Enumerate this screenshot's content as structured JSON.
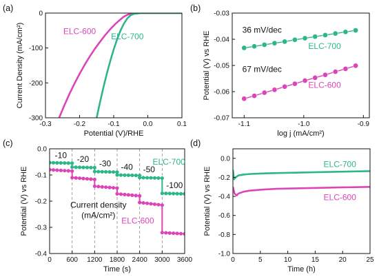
{
  "colors": {
    "elc600": "#dd44b8",
    "elc700": "#2db58c",
    "axis": "#111111",
    "guide": "#888888"
  },
  "chart_data": [
    {
      "id": "a",
      "panel_label": "(a)",
      "type": "line",
      "xlabel": "Potential (V)/RHE",
      "ylabel": "Current Density (mA/cm²)",
      "xlim": [
        -0.3,
        0.1
      ],
      "ylim": [
        -300,
        0
      ],
      "xticks": [
        -0.3,
        -0.2,
        -0.1,
        0.0,
        0.1
      ],
      "xtick_labels": [
        "-0.3",
        "-0.2",
        "-0.1",
        "0.0",
        "0.1"
      ],
      "yticks": [
        -300,
        -200,
        -100,
        0
      ],
      "ytick_labels": [
        "-300",
        "-200",
        "-100",
        "0"
      ],
      "series": [
        {
          "name": "ELC-600",
          "color": "#dd44b8",
          "x": [
            -0.26,
            -0.245,
            -0.23,
            -0.215,
            -0.2,
            -0.185,
            -0.17,
            -0.155,
            -0.14,
            -0.125,
            -0.11,
            -0.095,
            -0.08,
            -0.07,
            -0.06,
            -0.05,
            -0.04,
            -0.03,
            0.0,
            0.1
          ],
          "y": [
            -300,
            -265,
            -232,
            -202,
            -174,
            -148,
            -124,
            -102,
            -82,
            -63,
            -46,
            -31,
            -18,
            -10,
            -5,
            -2,
            -1,
            0,
            0,
            0
          ]
        },
        {
          "name": "ELC-700",
          "color": "#2db58c",
          "x": [
            -0.15,
            -0.14,
            -0.13,
            -0.12,
            -0.11,
            -0.1,
            -0.09,
            -0.08,
            -0.07,
            -0.06,
            -0.05,
            -0.04,
            -0.03,
            -0.02,
            0.0,
            0.1
          ],
          "y": [
            -300,
            -255,
            -212,
            -173,
            -137,
            -104,
            -75,
            -50,
            -30,
            -15,
            -6,
            -2,
            -1,
            0,
            0,
            0
          ]
        }
      ],
      "labels": [
        {
          "text": "ELC-600",
          "series": 0,
          "x": -0.2,
          "y": -60
        },
        {
          "text": "ELC-700",
          "series": 1,
          "x": -0.06,
          "y": -75
        }
      ]
    },
    {
      "id": "b",
      "panel_label": "(b)",
      "type": "scatter",
      "xlabel": "log j (mA/cm²)",
      "ylabel": "Potential (V) vs RHE",
      "xlim": [
        -1.12,
        -0.89
      ],
      "ylim": [
        -0.07,
        -0.03
      ],
      "xticks": [
        -1.1,
        -1.0,
        -0.9
      ],
      "xtick_labels": [
        "-1.1",
        "-1.0",
        "-0.9"
      ],
      "yticks": [
        -0.07,
        -0.06,
        -0.05,
        -0.04,
        -0.03
      ],
      "ytick_labels": [
        "-0.07",
        "-0.06",
        "-0.05",
        "-0.04",
        "-0.03"
      ],
      "series": [
        {
          "name": "ELC-700",
          "color": "#2db58c",
          "x": [
            -1.1,
            -1.083,
            -1.066,
            -1.049,
            -1.032,
            -1.015,
            -0.998,
            -0.981,
            -0.964,
            -0.947,
            -0.93,
            -0.913
          ],
          "y": [
            -0.0433,
            -0.0427,
            -0.0421,
            -0.0415,
            -0.0409,
            -0.0402,
            -0.0396,
            -0.039,
            -0.0384,
            -0.0378,
            -0.0372,
            -0.0366
          ]
        },
        {
          "name": "ELC-600",
          "color": "#dd44b8",
          "x": [
            -1.1,
            -1.083,
            -1.066,
            -1.049,
            -1.032,
            -1.015,
            -0.998,
            -0.981,
            -0.964,
            -0.947,
            -0.93,
            -0.913
          ],
          "y": [
            -0.0627,
            -0.0616,
            -0.0604,
            -0.0593,
            -0.0581,
            -0.057,
            -0.0558,
            -0.0547,
            -0.0536,
            -0.0524,
            -0.0513,
            -0.0501
          ]
        }
      ],
      "labels": [
        {
          "text": "36 mV/dec",
          "color": "#111111",
          "x": -1.07,
          "y": -0.0375
        },
        {
          "text": "ELC-700",
          "series": 0,
          "x": -0.965,
          "y": -0.0437
        },
        {
          "text": "67 mV/dec",
          "color": "#111111",
          "x": -1.07,
          "y": -0.0525
        },
        {
          "text": "ELC-600",
          "series": 1,
          "x": -0.965,
          "y": -0.0586
        }
      ]
    },
    {
      "id": "c",
      "panel_label": "(c)",
      "type": "line",
      "xlabel": "Time (s)",
      "ylabel": "Potential (V) vs RHE",
      "xlim": [
        0,
        3600
      ],
      "ylim": [
        -0.4,
        0
      ],
      "xticks": [
        0,
        600,
        1200,
        1800,
        2400,
        3000,
        3600
      ],
      "xtick_labels": [
        "0",
        "600",
        "1200",
        "1800",
        "2400",
        "3000",
        "3600"
      ],
      "yticks": [
        -0.4,
        -0.3,
        -0.2,
        -0.1,
        0.0
      ],
      "ytick_labels": [
        "-0.4",
        "-0.3",
        "-0.2",
        "-0.1",
        "0.0"
      ],
      "guides_x": [
        600,
        1200,
        1800,
        2400,
        3000
      ],
      "series": [
        {
          "name": "ELC-700",
          "color": "#2db58c",
          "segments": [
            {
              "x0": 0,
              "x1": 600,
              "y0": -0.053,
              "y1": -0.055
            },
            {
              "x0": 600,
              "x1": 1200,
              "y0": -0.07,
              "y1": -0.072
            },
            {
              "x0": 1200,
              "x1": 1800,
              "y0": -0.087,
              "y1": -0.089
            },
            {
              "x0": 1800,
              "x1": 2400,
              "y0": -0.1,
              "y1": -0.102
            },
            {
              "x0": 2400,
              "x1": 3000,
              "y0": -0.11,
              "y1": -0.112
            },
            {
              "x0": 3000,
              "x1": 3600,
              "y0": -0.17,
              "y1": -0.172
            }
          ]
        },
        {
          "name": "ELC-600",
          "color": "#dd44b8",
          "segments": [
            {
              "x0": 0,
              "x1": 600,
              "y0": -0.08,
              "y1": -0.085
            },
            {
              "x0": 600,
              "x1": 1200,
              "y0": -0.11,
              "y1": -0.117
            },
            {
              "x0": 1200,
              "x1": 1800,
              "y0": -0.143,
              "y1": -0.15
            },
            {
              "x0": 1800,
              "x1": 2400,
              "y0": -0.172,
              "y1": -0.18
            },
            {
              "x0": 2400,
              "x1": 3000,
              "y0": -0.205,
              "y1": -0.215
            },
            {
              "x0": 3000,
              "x1": 3600,
              "y0": -0.32,
              "y1": -0.325
            }
          ]
        }
      ],
      "labels": [
        {
          "text": "-10",
          "color": "#111111",
          "x": 300,
          "y": -0.035
        },
        {
          "text": "-20",
          "color": "#111111",
          "x": 890,
          "y": -0.05
        },
        {
          "text": "-30",
          "color": "#111111",
          "x": 1480,
          "y": -0.067
        },
        {
          "text": "-40",
          "color": "#111111",
          "x": 2060,
          "y": -0.08
        },
        {
          "text": "-50",
          "color": "#111111",
          "x": 2650,
          "y": -0.09
        },
        {
          "text": "-100",
          "color": "#111111",
          "x": 3330,
          "y": -0.15
        },
        {
          "text": "ELC-700",
          "series": 0,
          "x": 3180,
          "y": -0.06
        },
        {
          "text": "Current density",
          "color": "#111111",
          "x": 1300,
          "y": -0.225
        },
        {
          "text": "(mA/cm²)",
          "color": "#111111",
          "x": 1300,
          "y": -0.265
        },
        {
          "text": "ELC-600",
          "series": 1,
          "x": 2350,
          "y": -0.285
        }
      ]
    },
    {
      "id": "d",
      "panel_label": "(d)",
      "type": "line",
      "xlabel": "Time (h)",
      "ylabel": "Potential (V) vs RHE",
      "xlim": [
        0,
        25
      ],
      "ylim": [
        -1.0,
        0.1
      ],
      "xticks": [
        0,
        5,
        10,
        15,
        20,
        25
      ],
      "xtick_labels": [
        "0",
        "5",
        "10",
        "15",
        "20",
        "25"
      ],
      "yticks": [
        -1.0,
        -0.8,
        -0.6,
        -0.4,
        -0.2,
        0.0
      ],
      "ytick_labels": [
        "-1.0",
        "-0.8",
        "-0.6",
        "-0.4",
        "-0.2",
        "0.0"
      ],
      "series": [
        {
          "name": "ELC-700",
          "color": "#2db58c",
          "x": [
            0,
            0.2,
            0.5,
            1,
            2,
            3,
            5,
            8,
            12,
            16,
            20,
            25
          ],
          "y": [
            -0.12,
            -0.22,
            -0.2,
            -0.18,
            -0.17,
            -0.165,
            -0.16,
            -0.155,
            -0.15,
            -0.145,
            -0.14,
            -0.135
          ]
        },
        {
          "name": "ELC-600",
          "color": "#dd44b8",
          "x": [
            0,
            0.3,
            0.7,
            1,
            2,
            3,
            5,
            8,
            12,
            16,
            20,
            25
          ],
          "y": [
            -0.3,
            -0.37,
            -0.39,
            -0.37,
            -0.35,
            -0.34,
            -0.33,
            -0.32,
            -0.315,
            -0.31,
            -0.305,
            -0.3
          ]
        }
      ],
      "labels": [
        {
          "text": "ELC-700",
          "series": 0,
          "x": 19.5,
          "y": -0.09
        },
        {
          "text": "ELC-600",
          "series": 1,
          "x": 19.5,
          "y": -0.44
        }
      ]
    }
  ]
}
